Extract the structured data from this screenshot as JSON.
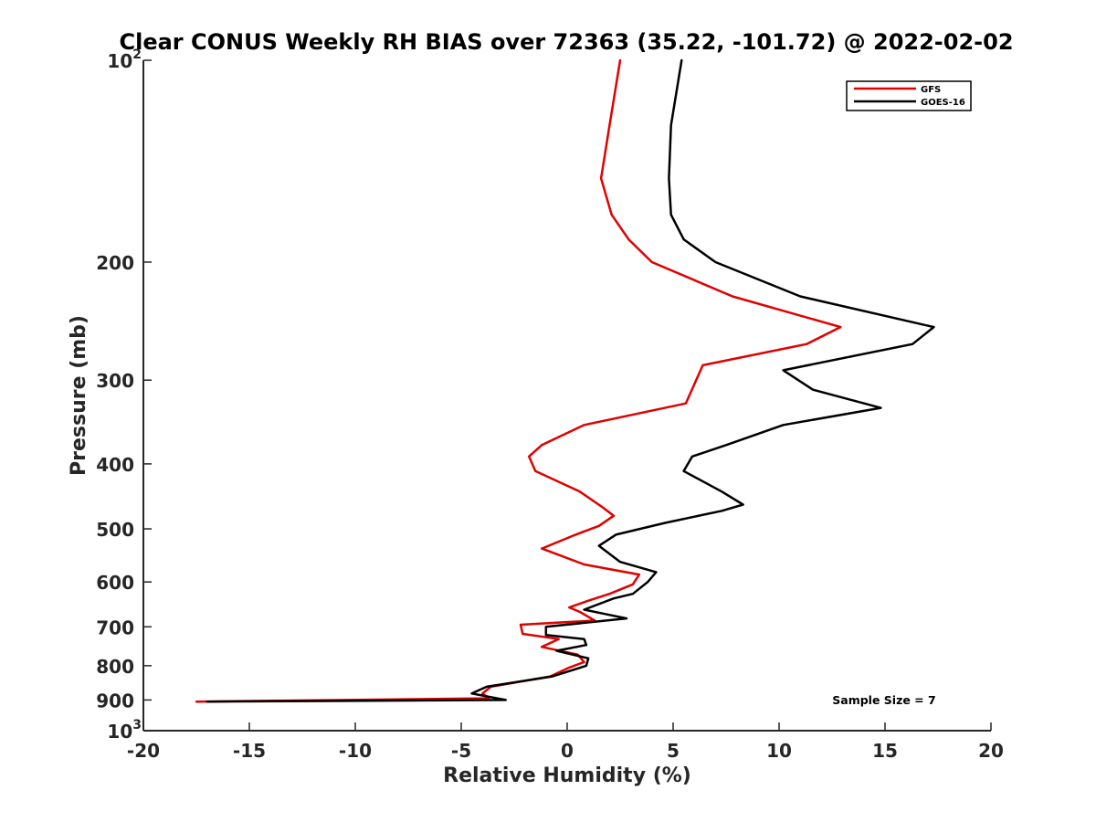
{
  "chart_data": {
    "type": "line",
    "title": "Clear CONUS Weekly RH BIAS over 72363 (35.22, -101.72) @ 2022-02-02",
    "xlabel": "Relative Humidity (%)",
    "ylabel": "Pressure (mb)",
    "xlim": [
      -20,
      20
    ],
    "ylim": [
      100,
      1000
    ],
    "yscale": "log",
    "y_reversed": true,
    "grid": false,
    "legend_position": "top-right",
    "x_ticks": [
      -20,
      -15,
      -10,
      -5,
      0,
      5,
      10,
      15,
      20
    ],
    "x_tick_labels": [
      "-20",
      "-15",
      "-10",
      "-5",
      "0",
      "5",
      "10",
      "15",
      "20"
    ],
    "y_ticks": [
      {
        "value": 100,
        "base": "10",
        "exp": "2"
      },
      {
        "value": 200,
        "label": "200"
      },
      {
        "value": 300,
        "label": "300"
      },
      {
        "value": 400,
        "label": "400"
      },
      {
        "value": 500,
        "label": "500"
      },
      {
        "value": 600,
        "label": "600"
      },
      {
        "value": 700,
        "label": "700"
      },
      {
        "value": 800,
        "label": "800"
      },
      {
        "value": 900,
        "label": "900"
      },
      {
        "value": 1000,
        "base": "10",
        "exp": "3"
      }
    ],
    "annotation": "Sample Size = 7",
    "series": [
      {
        "name": "GFS",
        "color": "#e00000",
        "points": [
          [
            2.5,
            100
          ],
          [
            2.0,
            125
          ],
          [
            1.6,
            150
          ],
          [
            2.1,
            170
          ],
          [
            2.9,
            185
          ],
          [
            4.0,
            200
          ],
          [
            7.8,
            225
          ],
          [
            12.9,
            250
          ],
          [
            11.3,
            265
          ],
          [
            6.4,
            285
          ],
          [
            5.6,
            325
          ],
          [
            0.8,
            350
          ],
          [
            -1.2,
            375
          ],
          [
            -1.8,
            390
          ],
          [
            -1.5,
            410
          ],
          [
            0.6,
            440
          ],
          [
            1.7,
            465
          ],
          [
            2.2,
            478
          ],
          [
            1.5,
            495
          ],
          [
            0.4,
            510
          ],
          [
            -1.2,
            535
          ],
          [
            0.8,
            565
          ],
          [
            3.4,
            585
          ],
          [
            3.1,
            605
          ],
          [
            2.0,
            625
          ],
          [
            1.0,
            640
          ],
          [
            0.1,
            655
          ],
          [
            0.6,
            665
          ],
          [
            1.3,
            685
          ],
          [
            -2.2,
            695
          ],
          [
            -2.1,
            717
          ],
          [
            -0.4,
            730
          ],
          [
            -1.2,
            750
          ],
          [
            0.5,
            770
          ],
          [
            0.8,
            790
          ],
          [
            0.1,
            805
          ],
          [
            -0.8,
            830
          ],
          [
            -3.6,
            860
          ],
          [
            -4.0,
            880
          ],
          [
            -3.7,
            895
          ],
          [
            -17.5,
            905
          ]
        ]
      },
      {
        "name": "GOES-16",
        "color": "#000000",
        "points": [
          [
            5.4,
            100
          ],
          [
            4.9,
            125
          ],
          [
            4.8,
            150
          ],
          [
            4.9,
            170
          ],
          [
            5.5,
            185
          ],
          [
            7.0,
            200
          ],
          [
            11.0,
            225
          ],
          [
            17.3,
            250
          ],
          [
            16.3,
            265
          ],
          [
            10.2,
            290
          ],
          [
            11.6,
            310
          ],
          [
            14.8,
            330
          ],
          [
            10.2,
            350
          ],
          [
            7.5,
            375
          ],
          [
            5.9,
            390
          ],
          [
            5.5,
            410
          ],
          [
            7.3,
            440
          ],
          [
            8.3,
            460
          ],
          [
            7.3,
            470
          ],
          [
            4.6,
            490
          ],
          [
            2.3,
            510
          ],
          [
            1.5,
            530
          ],
          [
            2.5,
            560
          ],
          [
            4.2,
            580
          ],
          [
            3.8,
            600
          ],
          [
            3.1,
            625
          ],
          [
            2.2,
            635
          ],
          [
            0.8,
            660
          ],
          [
            1.8,
            670
          ],
          [
            2.8,
            680
          ],
          [
            -1.0,
            700
          ],
          [
            -1.0,
            720
          ],
          [
            0.8,
            730
          ],
          [
            0.9,
            745
          ],
          [
            -0.5,
            760
          ],
          [
            1.0,
            780
          ],
          [
            0.9,
            800
          ],
          [
            -0.7,
            830
          ],
          [
            -3.8,
            860
          ],
          [
            -4.5,
            880
          ],
          [
            -2.9,
            900
          ],
          [
            -17.0,
            905
          ]
        ]
      }
    ]
  }
}
